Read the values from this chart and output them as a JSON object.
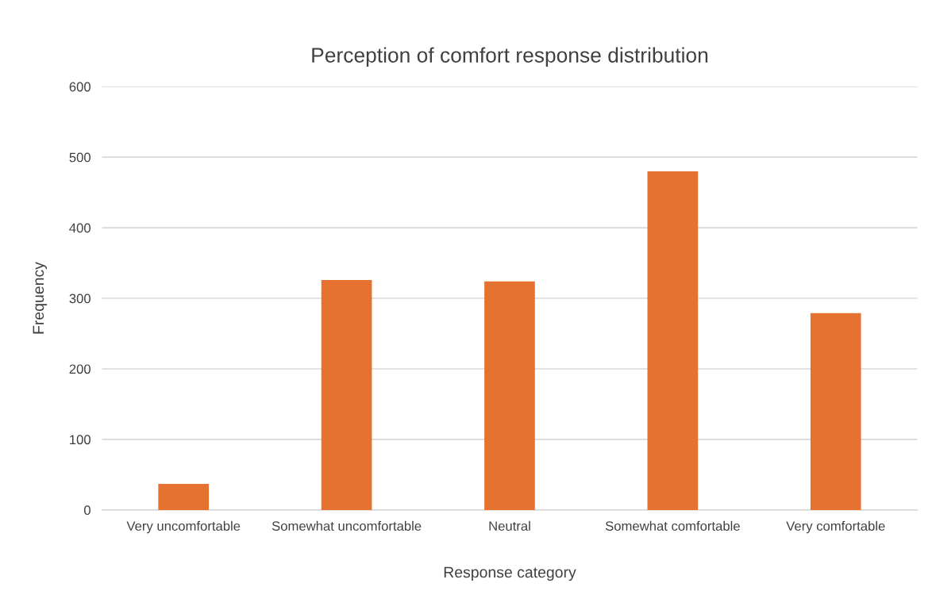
{
  "chart_data": {
    "type": "bar",
    "title": "Perception of comfort response distribution",
    "xlabel": "Response category",
    "ylabel": "Frequency",
    "categories": [
      "Very uncomfortable",
      "Somewhat uncomfortable",
      "Neutral",
      "Somewhat comfortable",
      "Very comfortable"
    ],
    "values": [
      37,
      326,
      324,
      480,
      279
    ],
    "color": "#e57230",
    "ylim": [
      0,
      600
    ],
    "yticks": [
      0,
      100,
      200,
      300,
      400,
      500,
      600
    ],
    "grid": "y",
    "legend": false
  }
}
